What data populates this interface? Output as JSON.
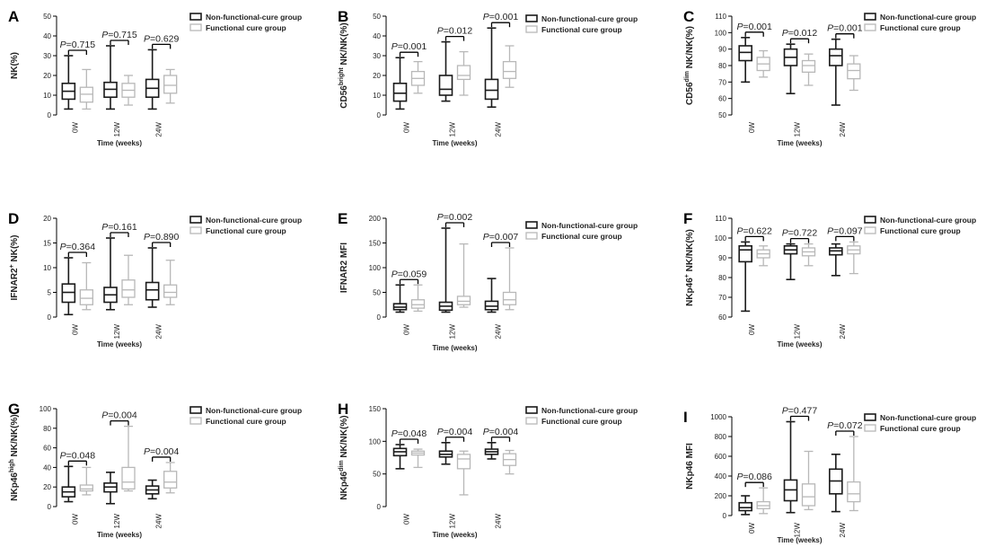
{
  "figure": {
    "legend": [
      "Non-functional-cure group",
      "Functional cure group"
    ],
    "colors": {
      "nonfunctional": "#1a1a1a",
      "functional": "#b8b8b8",
      "text": "#222222"
    }
  },
  "chart_data": [
    {
      "type": "boxplot",
      "panel": "A",
      "ylabel": "NK(%)",
      "xlabel": "Time (weeks)",
      "categories": [
        "0W",
        "12W",
        "24W"
      ],
      "ylim": [
        0,
        50
      ],
      "yticks": [
        0,
        10,
        20,
        30,
        40,
        50
      ],
      "series": [
        {
          "name": "Non-functional-cure group",
          "boxes": [
            [
              3,
              8,
              12,
              16,
              30
            ],
            [
              3,
              9,
              13,
              16.5,
              35
            ],
            [
              3,
              9,
              13.5,
              18,
              33
            ]
          ]
        },
        {
          "name": "Functional cure group",
          "boxes": [
            [
              3,
              6.5,
              10.5,
              14,
              23
            ],
            [
              5,
              9,
              12.5,
              16,
              20
            ],
            [
              6,
              11,
              15,
              20,
              23
            ]
          ]
        }
      ],
      "pvalues": [
        "P=0.715",
        "P=0.715",
        "P=0.629"
      ]
    },
    {
      "type": "boxplot",
      "panel": "B",
      "ylabel": "CD56bright NK/NK(%)",
      "xlabel": "Time (weeks)",
      "categories": [
        "0W",
        "12W",
        "24W"
      ],
      "ylim": [
        0,
        50
      ],
      "yticks": [
        0,
        10,
        20,
        30,
        40,
        50
      ],
      "series": [
        {
          "name": "Non-functional-cure group",
          "boxes": [
            [
              3,
              7,
              11,
              16,
              29
            ],
            [
              7,
              10,
              13,
              20,
              37
            ],
            [
              4,
              8,
              12.5,
              18,
              44
            ]
          ]
        },
        {
          "name": "Functional cure group",
          "boxes": [
            [
              11,
              15,
              18.5,
              22,
              27
            ],
            [
              10,
              18,
              20,
              25,
              32
            ],
            [
              14,
              18.5,
              22,
              27,
              35
            ]
          ]
        }
      ],
      "pvalues": [
        "P=0.001",
        "P=0.012",
        "P=0.001"
      ]
    },
    {
      "type": "boxplot",
      "panel": "C",
      "ylabel": "CD56dim NK/NK(%)",
      "xlabel": "Time (weeks)",
      "categories": [
        "0W",
        "12W",
        "24W"
      ],
      "ylim": [
        50,
        110
      ],
      "yticks": [
        50,
        60,
        70,
        80,
        90,
        100,
        110
      ],
      "series": [
        {
          "name": "Non-functional-cure group",
          "boxes": [
            [
              70,
              83,
              88,
              92,
              97
            ],
            [
              63,
              80,
              85,
              90,
              93
            ],
            [
              56,
              80,
              86,
              90,
              96
            ]
          ]
        },
        {
          "name": "Functional cure group",
          "boxes": [
            [
              73,
              77,
              81,
              85,
              89
            ],
            [
              68,
              76,
              80,
              83,
              87
            ],
            [
              65,
              72,
              77,
              81,
              86
            ]
          ]
        }
      ],
      "pvalues": [
        "P=0.001",
        "P=0.012",
        "P=0.001"
      ]
    },
    {
      "type": "boxplot",
      "panel": "D",
      "ylabel": "IFNAR2+ NK(%)",
      "xlabel": "Time (weeks)",
      "categories": [
        "0W",
        "12W",
        "24W"
      ],
      "ylim": [
        0,
        20
      ],
      "yticks": [
        0,
        5,
        10,
        15,
        20
      ],
      "series": [
        {
          "name": "Non-functional-cure group",
          "boxes": [
            [
              0.5,
              3,
              5,
              6.7,
              12
            ],
            [
              1.5,
              3,
              4.5,
              6,
              16
            ],
            [
              2,
              3.5,
              5.5,
              7,
              14
            ]
          ]
        },
        {
          "name": "Functional cure group",
          "boxes": [
            [
              1.5,
              2.5,
              3.8,
              5.5,
              11
            ],
            [
              2.5,
              4,
              5.5,
              7.5,
              12.5
            ],
            [
              2.5,
              4,
              5,
              6.5,
              11.5
            ]
          ]
        }
      ],
      "pvalues": [
        "P=0.364",
        "P=0.161",
        "P=0.890"
      ]
    },
    {
      "type": "boxplot",
      "panel": "E",
      "ylabel": "IFNAR2 MFI",
      "xlabel": "Time (weeks)",
      "categories": [
        "0W",
        "12W",
        "24W"
      ],
      "ylim": [
        0,
        200
      ],
      "yticks": [
        0,
        50,
        100,
        150,
        200
      ],
      "series": [
        {
          "name": "Non-functional-cure group",
          "boxes": [
            [
              10,
              15,
              20,
              27,
              65
            ],
            [
              10,
              14,
              22,
              30,
              180
            ],
            [
              10,
              15,
              22,
              32,
              78
            ]
          ]
        },
        {
          "name": "Functional cure group",
          "boxes": [
            [
              12,
              18,
              25,
              35,
              65
            ],
            [
              20,
              25,
              32,
              42,
              148
            ],
            [
              15,
              25,
              35,
              50,
              140
            ]
          ]
        }
      ],
      "pvalues": [
        "P=0.059",
        "P=0.002",
        "P=0.007"
      ]
    },
    {
      "type": "boxplot",
      "panel": "F",
      "ylabel": "NKp46+ NK/NK(%)",
      "xlabel": "Time (weeks)",
      "categories": [
        "0W",
        "12W",
        "24W"
      ],
      "ylim": [
        60,
        110
      ],
      "yticks": [
        60,
        70,
        80,
        90,
        100,
        110
      ],
      "series": [
        {
          "name": "Non-functional-cure group",
          "boxes": [
            [
              63,
              88,
              94,
              96,
              98
            ],
            [
              79,
              92,
              94,
              96,
              97
            ],
            [
              81,
              91.5,
              93.5,
              95,
              97
            ]
          ]
        },
        {
          "name": "Functional cure group",
          "boxes": [
            [
              86,
              90,
              92,
              94,
              96
            ],
            [
              86,
              91,
              93,
              95,
              97
            ],
            [
              82,
              92,
              94,
              96,
              98
            ]
          ]
        }
      ],
      "pvalues": [
        "P=0.622",
        "P=0.722",
        "P=0.097"
      ]
    },
    {
      "type": "boxplot",
      "panel": "G",
      "ylabel": "NKp46high NK/NK(%)",
      "xlabel": "Time (weeks)",
      "categories": [
        "0W",
        "12W",
        "24W"
      ],
      "ylim": [
        0,
        100
      ],
      "yticks": [
        0,
        20,
        40,
        60,
        80,
        100
      ],
      "series": [
        {
          "name": "Non-functional-cure group",
          "boxes": [
            [
              5,
              10,
              15,
              20,
              41
            ],
            [
              3,
              15,
              20,
              24,
              35
            ],
            [
              8,
              13,
              17,
              21,
              27
            ]
          ]
        },
        {
          "name": "Functional cure group",
          "boxes": [
            [
              12,
              16,
              18,
              22,
              40
            ],
            [
              16,
              18,
              25,
              40,
              82
            ],
            [
              14,
              19,
              25,
              36,
              45
            ]
          ]
        }
      ],
      "pvalues": [
        "P=0.048",
        "P=0.004",
        "P=0.004"
      ]
    },
    {
      "type": "boxplot",
      "panel": "H",
      "ylabel": "NKp46dim NK/NK(%)",
      "xlabel": "Time (weeks)",
      "categories": [
        "0W",
        "12W",
        "24W"
      ],
      "ylim": [
        0,
        150
      ],
      "yticks": [
        0,
        50,
        100,
        150
      ],
      "series": [
        {
          "name": "Non-functional-cure group",
          "boxes": [
            [
              58,
              78,
              84,
              89,
              95
            ],
            [
              65,
              76,
              80,
              85,
              98
            ],
            [
              73,
              80,
              84,
              88,
              98
            ]
          ]
        },
        {
          "name": "Functional cure group",
          "boxes": [
            [
              60,
              79,
              82,
              85,
              88
            ],
            [
              18,
              58,
              73,
              80,
              85
            ],
            [
              50,
              63,
              72,
              81,
              86
            ]
          ]
        }
      ],
      "pvalues": [
        "P=0.048",
        "P=0.004",
        "P=0.004"
      ]
    },
    {
      "type": "boxplot",
      "panel": "I",
      "ylabel": "NKp46 MFI",
      "xlabel": "Time (weeks)",
      "categories": [
        "0W",
        "12W",
        "24W"
      ],
      "ylim": [
        0,
        1000
      ],
      "yticks": [
        0,
        200,
        400,
        600,
        800,
        1000
      ],
      "series": [
        {
          "name": "Non-functional-cure group",
          "boxes": [
            [
              10,
              50,
              80,
              130,
              200
            ],
            [
              30,
              150,
              260,
              360,
              950
            ],
            [
              40,
              220,
              350,
              470,
              620
            ]
          ]
        },
        {
          "name": "Functional cure group",
          "boxes": [
            [
              20,
              70,
              100,
              140,
              280
            ],
            [
              60,
              100,
              190,
              320,
              650
            ],
            [
              50,
              140,
              220,
              340,
              800
            ]
          ]
        }
      ],
      "pvalues": [
        "P=0.086",
        "P=0.477",
        "P=0.072"
      ]
    }
  ]
}
